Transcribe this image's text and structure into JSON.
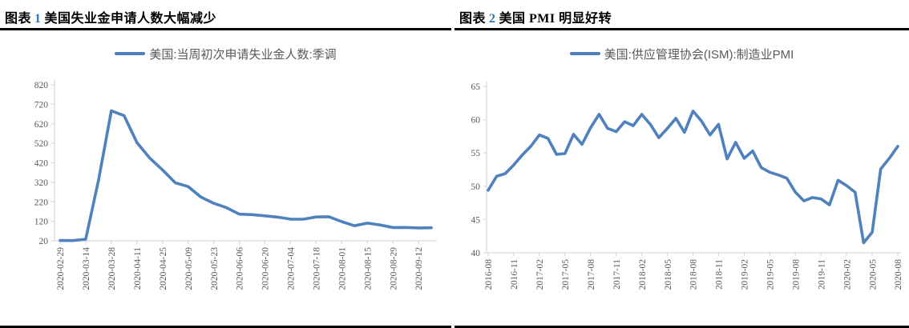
{
  "colors": {
    "line_blue": "#4F81BD",
    "figure_number_blue": "#2E75B6",
    "title_black": "#000000",
    "tick_text_gray": "#595959",
    "axis_gray": "#D9D9D9",
    "rule_black": "#000000"
  },
  "figures": [
    {
      "label": "图表",
      "number": "1",
      "caption": "美国失业金申请人数大幅减少"
    },
    {
      "label": "图表",
      "number": "2",
      "caption": "美国 PMI 明显好转"
    }
  ],
  "chart_data": [
    {
      "type": "line",
      "title": "美国失业金申请人数大幅减少",
      "legend": "美国:当周初次申请失业金人数:季调",
      "legend_position": "top-center",
      "grid": false,
      "ylim": [
        20,
        820
      ],
      "yticks": [
        20,
        120,
        220,
        320,
        420,
        520,
        620,
        720,
        820
      ],
      "label_every": 2,
      "x": [
        "2020-02-29",
        "2020-03-07",
        "2020-03-14",
        "2020-03-21",
        "2020-03-28",
        "2020-04-04",
        "2020-04-11",
        "2020-04-18",
        "2020-04-25",
        "2020-05-02",
        "2020-05-09",
        "2020-05-16",
        "2020-05-23",
        "2020-05-30",
        "2020-06-06",
        "2020-06-13",
        "2020-06-20",
        "2020-06-27",
        "2020-07-04",
        "2020-07-11",
        "2020-07-18",
        "2020-07-25",
        "2020-08-01",
        "2020-08-08",
        "2020-08-15",
        "2020-08-22",
        "2020-08-29",
        "2020-09-05",
        "2020-09-12",
        "2020-09-19"
      ],
      "x_tick_labels": [
        "2020-02-29",
        "2020-03-14",
        "2020-03-28",
        "2020-04-11",
        "2020-04-25",
        "2020-05-09",
        "2020-05-23",
        "2020-06-06",
        "2020-06-20",
        "2020-07-04",
        "2020-07-18",
        "2020-08-01",
        "2020-08-15",
        "2020-08-29",
        "2020-09-12"
      ],
      "values": [
        21.7,
        21.1,
        28.2,
        330.7,
        686.7,
        661.5,
        523.7,
        444.2,
        383.9,
        317.6,
        298.1,
        244.6,
        212.3,
        189.7,
        156.6,
        154.0,
        148.2,
        141.3,
        131.0,
        130.8,
        142.2,
        143.5,
        118.6,
        97.1,
        110.6,
        101.1,
        88.1,
        88.4,
        86.0,
        87.0
      ]
    },
    {
      "type": "line",
      "title": "美国 PMI 明显好转",
      "legend": "美国:供应管理协会(ISM):制造业PMI",
      "legend_position": "top-center",
      "grid": false,
      "ylim": [
        40,
        65
      ],
      "yticks": [
        40,
        45,
        50,
        55,
        60,
        65
      ],
      "label_every": 3,
      "x": [
        "2016-08",
        "2016-09",
        "2016-10",
        "2016-11",
        "2016-12",
        "2017-01",
        "2017-02",
        "2017-03",
        "2017-04",
        "2017-05",
        "2017-06",
        "2017-07",
        "2017-08",
        "2017-09",
        "2017-10",
        "2017-11",
        "2017-12",
        "2018-01",
        "2018-02",
        "2018-03",
        "2018-04",
        "2018-05",
        "2018-06",
        "2018-07",
        "2018-08",
        "2018-09",
        "2018-10",
        "2018-11",
        "2018-12",
        "2019-01",
        "2019-02",
        "2019-03",
        "2019-04",
        "2019-05",
        "2019-06",
        "2019-07",
        "2019-08",
        "2019-09",
        "2019-10",
        "2019-11",
        "2019-12",
        "2020-01",
        "2020-02",
        "2020-03",
        "2020-04",
        "2020-05",
        "2020-06",
        "2020-07",
        "2020-08"
      ],
      "x_tick_labels": [
        "2016-08",
        "2016-11",
        "2017-02",
        "2017-05",
        "2017-08",
        "2017-11",
        "2018-02",
        "2018-05",
        "2018-08",
        "2018-11",
        "2019-02",
        "2019-05",
        "2019-08",
        "2019-11",
        "2020-02",
        "2020-05",
        "2020-08"
      ],
      "values": [
        49.4,
        51.5,
        51.9,
        53.2,
        54.7,
        56.0,
        57.7,
        57.2,
        54.8,
        54.9,
        57.8,
        56.3,
        58.8,
        60.8,
        58.7,
        58.2,
        59.7,
        59.1,
        60.8,
        59.3,
        57.3,
        58.7,
        60.2,
        58.1,
        61.3,
        59.8,
        57.7,
        59.3,
        54.1,
        56.6,
        54.2,
        55.3,
        52.8,
        52.1,
        51.7,
        51.2,
        49.1,
        47.8,
        48.3,
        48.1,
        47.2,
        50.9,
        50.1,
        49.1,
        41.5,
        43.1,
        52.6,
        54.2,
        56.0
      ]
    }
  ]
}
